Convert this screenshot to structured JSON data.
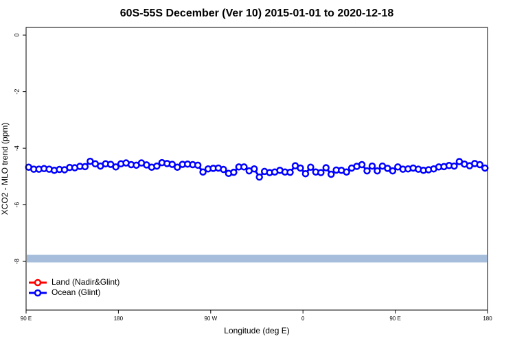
{
  "chart_data": {
    "type": "line",
    "title": "60S-55S December (Ver 10)   2015-01-01 to 2020-12-18",
    "x_label": "Longitude (deg E)",
    "y_label": "XCO2 - MLO trend (ppm)",
    "xlim": [
      90,
      540
    ],
    "ylim": [
      -9.72,
      0.27
    ],
    "xticks": [
      {
        "value": 90,
        "label": "90 E"
      },
      {
        "value": 180,
        "label": "180"
      },
      {
        "value": 270,
        "label": "90 W"
      },
      {
        "value": 360,
        "label": "0"
      },
      {
        "value": 450,
        "label": "90 E"
      },
      {
        "value": 540,
        "label": "180"
      }
    ],
    "yticks": [
      0,
      -2,
      -4,
      -6,
      -8
    ],
    "legend": "bottom-left",
    "reference_band": {
      "value": -7.9,
      "color": "#a6bddb"
    },
    "x": [
      92.5,
      97.5,
      102.5,
      107.5,
      112.5,
      117.5,
      122.5,
      127.5,
      132.5,
      137.5,
      142.5,
      147.5,
      152.5,
      157.5,
      162.5,
      167.5,
      172.5,
      177.5,
      182.5,
      187.5,
      192.5,
      197.5,
      202.5,
      207.5,
      212.5,
      217.5,
      222.5,
      227.5,
      232.5,
      237.5,
      242.5,
      247.5,
      252.5,
      257.5,
      262.5,
      267.5,
      272.5,
      277.5,
      282.5,
      287.5,
      292.5,
      297.5,
      302.5,
      307.5,
      312.5,
      317.5,
      322.5,
      327.5,
      332.5,
      337.5,
      342.5,
      347.5,
      352.5,
      357.5,
      362.5,
      367.5,
      372.5,
      377.5,
      382.5,
      387.5,
      392.5,
      397.5,
      402.5,
      407.5,
      412.5,
      417.5,
      422.5,
      427.5,
      432.5,
      437.5,
      442.5,
      447.5,
      452.5,
      457.5,
      462.5,
      467.5,
      472.5,
      477.5,
      482.5,
      487.5,
      492.5,
      497.5,
      502.5,
      507.5,
      512.5,
      517.5,
      522.5,
      527.5,
      532.5,
      537.5
    ],
    "series": [
      {
        "name": "Land (Nadir&Glint)",
        "color": "#ff0000",
        "values": [
          null,
          null,
          null,
          null,
          null,
          null,
          null,
          null,
          null,
          null,
          null,
          null,
          null,
          null,
          null,
          null,
          null,
          null,
          null,
          null,
          null,
          null,
          null,
          null,
          null,
          null,
          null,
          null,
          null,
          null,
          null,
          null,
          null,
          null,
          null,
          null,
          null,
          null,
          null,
          null,
          null,
          null,
          null,
          null,
          null,
          null,
          null,
          null,
          null,
          null,
          null,
          null,
          null,
          null,
          null,
          null,
          null,
          null,
          null,
          null,
          null,
          null,
          null,
          null,
          null,
          null,
          null,
          null,
          null,
          null,
          null,
          null,
          null,
          null,
          null,
          null,
          null,
          null,
          null,
          null,
          null,
          null,
          null,
          null,
          null,
          null,
          null,
          null,
          null,
          null
        ]
      },
      {
        "name": "Ocean (Glint)",
        "color": "#0000ff",
        "values": [
          -4.67,
          -4.74,
          -4.74,
          -4.72,
          -4.74,
          -4.78,
          -4.75,
          -4.76,
          -4.68,
          -4.69,
          -4.64,
          -4.65,
          -4.46,
          -4.55,
          -4.63,
          -4.55,
          -4.57,
          -4.66,
          -4.55,
          -4.52,
          -4.58,
          -4.6,
          -4.52,
          -4.59,
          -4.67,
          -4.63,
          -4.51,
          -4.54,
          -4.57,
          -4.67,
          -4.57,
          -4.56,
          -4.58,
          -4.6,
          -4.84,
          -4.73,
          -4.71,
          -4.7,
          -4.75,
          -4.89,
          -4.85,
          -4.66,
          -4.66,
          -4.8,
          -4.73,
          -5.02,
          -4.82,
          -4.86,
          -4.84,
          -4.78,
          -4.84,
          -4.85,
          -4.62,
          -4.7,
          -4.9,
          -4.67,
          -4.84,
          -4.86,
          -4.69,
          -4.92,
          -4.77,
          -4.78,
          -4.84,
          -4.7,
          -4.64,
          -4.58,
          -4.8,
          -4.63,
          -4.8,
          -4.63,
          -4.71,
          -4.8,
          -4.66,
          -4.74,
          -4.73,
          -4.7,
          -4.74,
          -4.78,
          -4.76,
          -4.73,
          -4.66,
          -4.65,
          -4.61,
          -4.63,
          -4.47,
          -4.56,
          -4.62,
          -4.54,
          -4.58,
          -4.7
        ]
      }
    ]
  }
}
